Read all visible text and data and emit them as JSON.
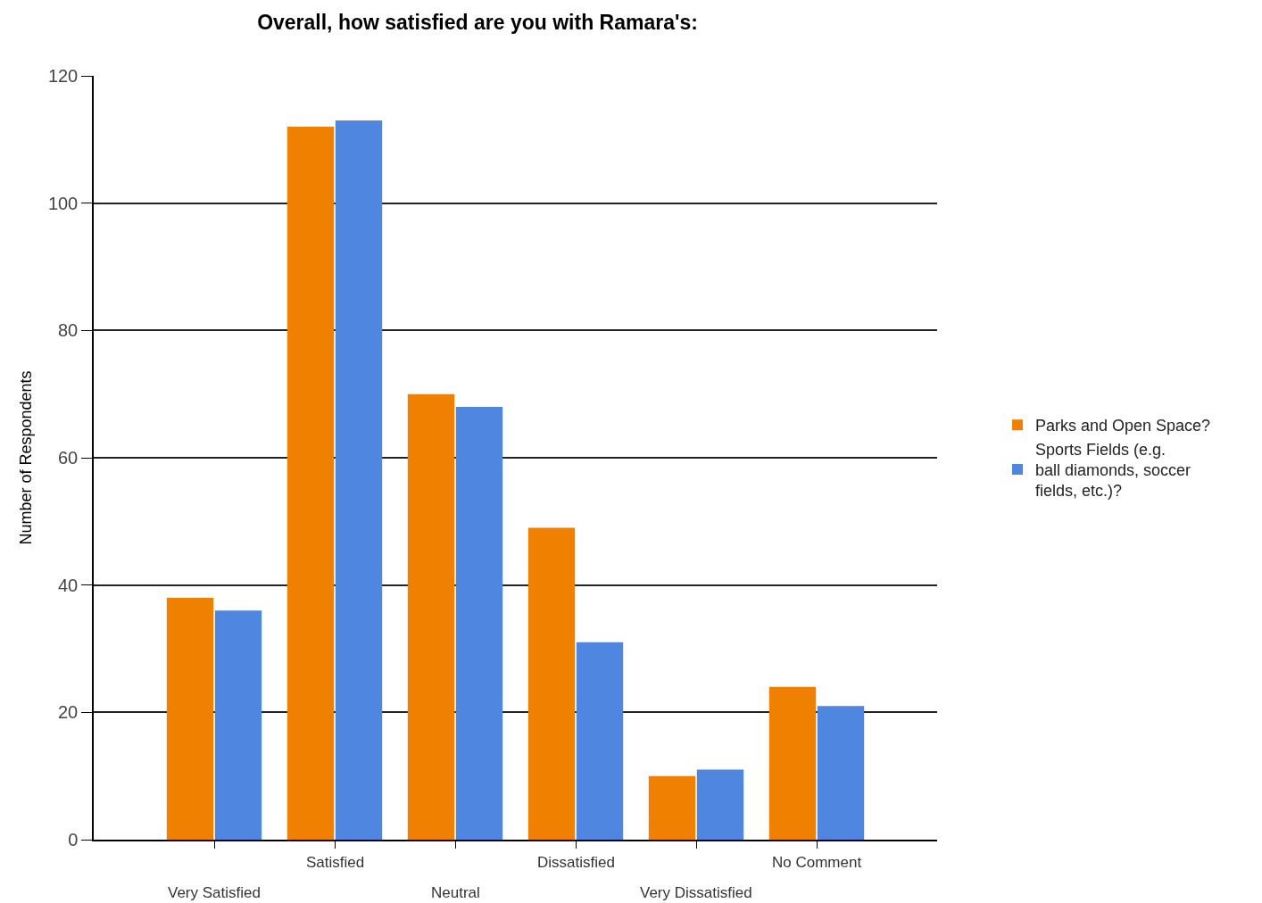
{
  "chart_data": {
    "type": "bar",
    "title": "Overall, how satisfied are you with Ramara's:",
    "ylabel": "Number of Respondents",
    "categories": [
      "Very Satisfied",
      "Satisfied",
      "Neutral",
      "Dissatisfied",
      "Very Dissatisfied",
      "No Comment"
    ],
    "series": [
      {
        "name": "Parks and Open Space?",
        "color": "#f08000",
        "values": [
          38,
          112,
          70,
          49,
          10,
          24
        ]
      },
      {
        "name": "Sports Fields (e.g. ball diamonds, soccer fields, etc.)?",
        "color": "#4f86e0",
        "values": [
          36,
          113,
          68,
          31,
          11,
          21
        ]
      }
    ],
    "ylim": [
      0,
      120
    ],
    "yticks": [
      0,
      20,
      40,
      60,
      80,
      100,
      120
    ],
    "grid": "y",
    "legend": "right"
  }
}
